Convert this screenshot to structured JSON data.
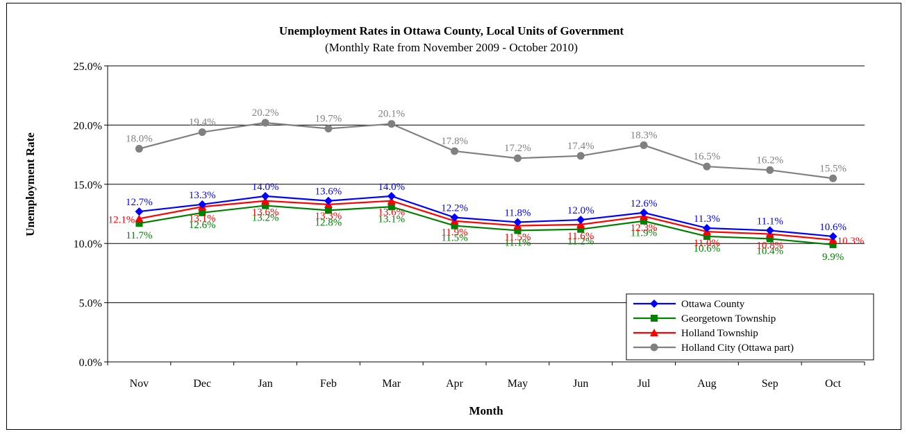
{
  "chart_data": {
    "type": "line",
    "title": "Unemployment Rates in Ottawa County, Local Units of Government",
    "subtitle": "(Monthly Rate from November 2009 - October 2010)",
    "xlabel": "Month",
    "ylabel": "Unemployment Rate",
    "ylim": [
      0,
      25
    ],
    "yticks": [
      0,
      5,
      10,
      15,
      20,
      25
    ],
    "ytick_labels": [
      "0.0%",
      "5.0%",
      "10.0%",
      "15.0%",
      "20.0%",
      "25.0%"
    ],
    "grid": true,
    "legend_position": "bottom-right",
    "categories": [
      "Nov",
      "Dec",
      "Jan",
      "Feb",
      "Mar",
      "Apr",
      "May",
      "Jun",
      "Jul",
      "Aug",
      "Sep",
      "Oct"
    ],
    "series": [
      {
        "name": "Ottawa County",
        "color": "#0000ff",
        "marker": "diamond",
        "values": [
          12.7,
          13.3,
          14.0,
          13.6,
          14.0,
          12.2,
          11.8,
          12.0,
          12.6,
          11.3,
          11.1,
          10.6
        ],
        "labels": [
          "12.7%",
          "13.3%",
          "14.0%",
          "13.6%",
          "14.0%",
          "12.2%",
          "11.8%",
          "12.0%",
          "12.6%",
          "11.3%",
          "11.1%",
          "10.6%"
        ]
      },
      {
        "name": "Georgetown Township",
        "color": "#008000",
        "marker": "square",
        "values": [
          11.7,
          12.6,
          13.2,
          12.8,
          13.1,
          11.5,
          11.1,
          11.2,
          11.9,
          10.6,
          10.4,
          9.9
        ],
        "labels": [
          "11.7%",
          "12.6%",
          "13.2%",
          "12.8%",
          "13.1%",
          "11.5%",
          "11.1%",
          "11.2%",
          "11.9%",
          "10.6%",
          "10.4%",
          "9.9%"
        ]
      },
      {
        "name": "Holland Township",
        "color": "#ff0000",
        "marker": "triangle",
        "values": [
          12.1,
          13.1,
          13.6,
          13.3,
          13.6,
          11.9,
          11.5,
          11.6,
          12.3,
          11.0,
          10.8,
          10.3
        ],
        "labels": [
          "12.1%",
          "13.1%",
          "13.6%",
          "13.3%",
          "13.6%",
          "11.9%",
          "11.5%",
          "11.6%",
          "12.3%",
          "11.0%",
          "10.8%",
          "10.3%"
        ]
      },
      {
        "name": "Holland City (Ottawa part)",
        "color": "#808080",
        "marker": "circle",
        "values": [
          18.0,
          19.4,
          20.2,
          19.7,
          20.1,
          17.8,
          17.2,
          17.4,
          18.3,
          16.5,
          16.2,
          15.5
        ],
        "labels": [
          "18.0%",
          "19.4%",
          "20.2%",
          "19.7%",
          "20.1%",
          "17.8%",
          "17.2%",
          "17.4%",
          "18.3%",
          "16.5%",
          "16.2%",
          "15.5%"
        ]
      }
    ]
  }
}
